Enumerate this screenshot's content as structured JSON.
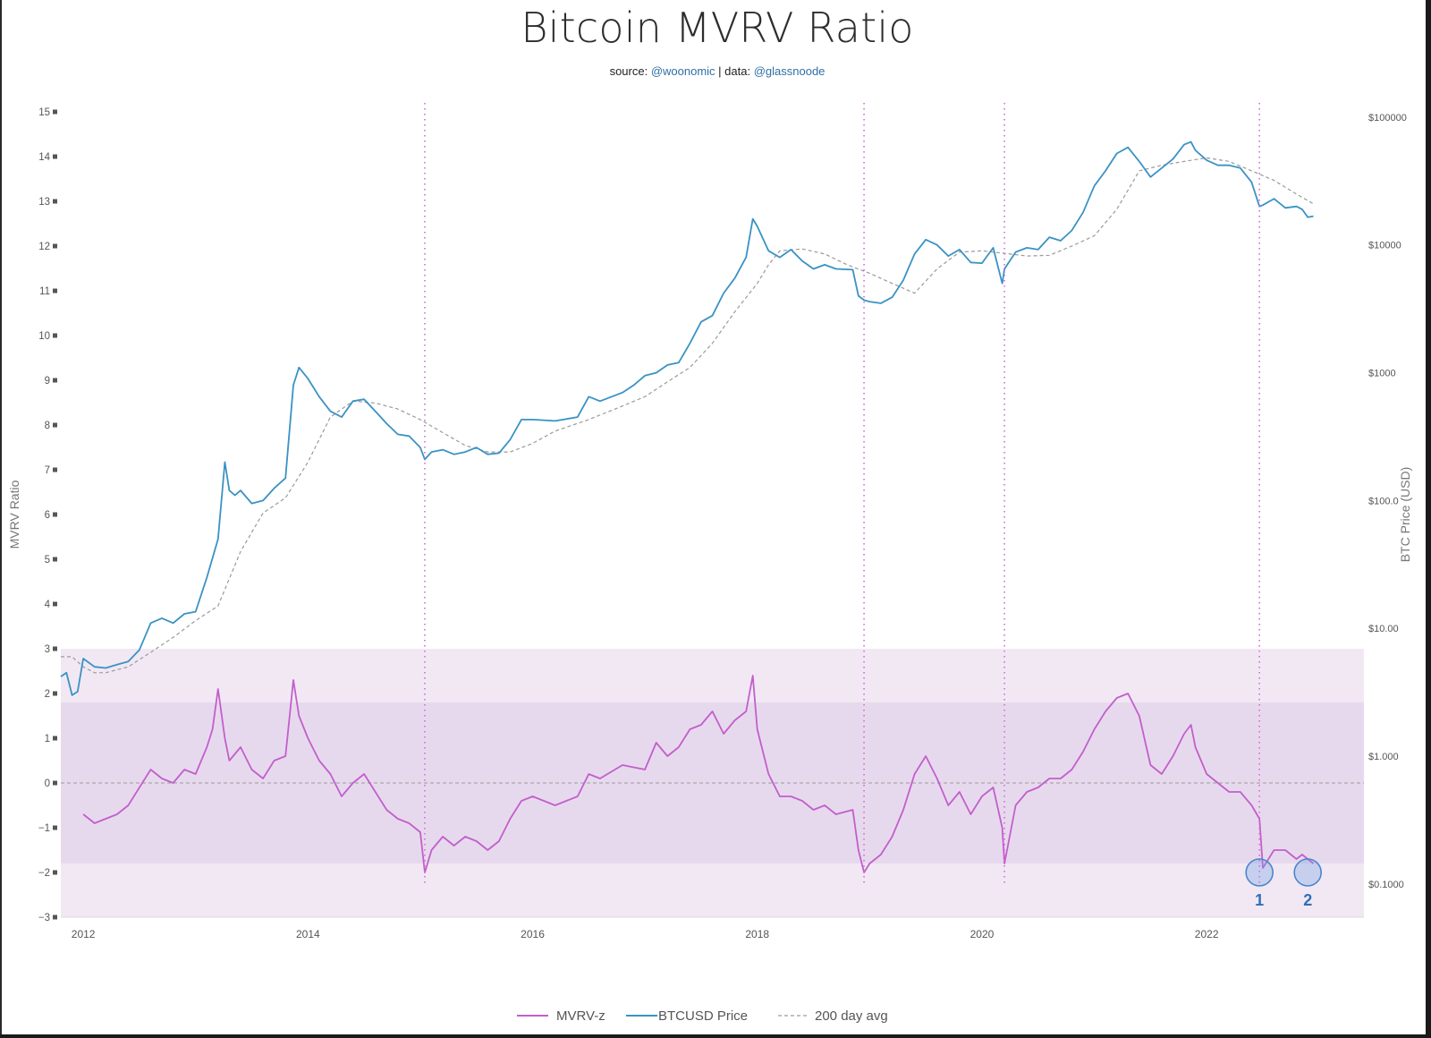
{
  "title": "Bitcoin MVRV Ratio",
  "subtitle": {
    "source_prefix": "source: ",
    "source_handle": "@woonomic",
    "separator": " | data: ",
    "data_handle": "@glassnoode"
  },
  "chart_data": {
    "type": "line",
    "title": "Bitcoin MVRV Ratio",
    "xlabel": "",
    "ylabel": "MVRV Ratio",
    "y2label": "BTC Price (USD)",
    "xlim": [
      2011.8,
      2023.4
    ],
    "ylim": [
      -3,
      15
    ],
    "y2_scale": "log",
    "y2lim": [
      0.055,
      110000
    ],
    "x_ticks": [
      2012,
      2014,
      2016,
      2018,
      2020,
      2022
    ],
    "x_tick_labels": [
      "2012",
      "2014",
      "2016",
      "2018",
      "2020",
      "2022"
    ],
    "y_ticks": [
      -3,
      -2,
      -1,
      0,
      1,
      2,
      3,
      4,
      5,
      6,
      7,
      8,
      9,
      10,
      11,
      12,
      13,
      14,
      15
    ],
    "y_tick_labels": [
      "−3",
      "−2",
      "−1",
      "0",
      "1",
      "2",
      "3",
      "4",
      "5",
      "6",
      "7",
      "8",
      "9",
      "10",
      "11",
      "12",
      "13",
      "14",
      "15"
    ],
    "y2_ticks": [
      0.1,
      1,
      10,
      100,
      1000,
      10000,
      100000
    ],
    "y2_tick_labels": [
      "$0.1000",
      "$1.000",
      "$10.00",
      "$100.0",
      "$1000",
      "$10000",
      "$100000"
    ],
    "bands": [
      {
        "y0": -3,
        "y1": 3,
        "color": "#f1e8f4"
      },
      {
        "y0": -1.8,
        "y1": 1.8,
        "color": "#e7d9ed"
      }
    ],
    "zero_line": 0,
    "vertical_markers": [
      2015.04,
      2018.95,
      2020.2,
      2022.47
    ],
    "series": [
      {
        "name": "BTCUSD Price",
        "axis": "y2",
        "color": "#3a92c4",
        "x": [
          2011.8,
          2011.85,
          2011.9,
          2011.95,
          2012.0,
          2012.1,
          2012.2,
          2012.3,
          2012.4,
          2012.5,
          2012.6,
          2012.7,
          2012.8,
          2012.9,
          2013.0,
          2013.1,
          2013.2,
          2013.26,
          2013.3,
          2013.35,
          2013.4,
          2013.5,
          2013.6,
          2013.7,
          2013.8,
          2013.87,
          2013.92,
          2014.0,
          2014.1,
          2014.2,
          2014.3,
          2014.4,
          2014.5,
          2014.6,
          2014.7,
          2014.8,
          2014.9,
          2015.0,
          2015.04,
          2015.1,
          2015.2,
          2015.3,
          2015.4,
          2015.5,
          2015.6,
          2015.7,
          2015.8,
          2015.9,
          2016.0,
          2016.2,
          2016.4,
          2016.5,
          2016.6,
          2016.8,
          2016.9,
          2017.0,
          2017.1,
          2017.2,
          2017.3,
          2017.4,
          2017.5,
          2017.6,
          2017.7,
          2017.8,
          2017.9,
          2017.96,
          2018.0,
          2018.1,
          2018.2,
          2018.3,
          2018.4,
          2018.5,
          2018.6,
          2018.7,
          2018.85,
          2018.9,
          2018.95,
          2019.0,
          2019.1,
          2019.2,
          2019.3,
          2019.4,
          2019.5,
          2019.6,
          2019.7,
          2019.8,
          2019.9,
          2020.0,
          2020.1,
          2020.18,
          2020.2,
          2020.3,
          2020.4,
          2020.5,
          2020.6,
          2020.7,
          2020.8,
          2020.9,
          2021.0,
          2021.1,
          2021.2,
          2021.3,
          2021.4,
          2021.5,
          2021.6,
          2021.7,
          2021.8,
          2021.86,
          2021.9,
          2022.0,
          2022.1,
          2022.2,
          2022.3,
          2022.4,
          2022.47,
          2022.5,
          2022.6,
          2022.7,
          2022.8,
          2022.85,
          2022.9,
          2022.95
        ],
        "values": [
          4.2,
          4.5,
          3.0,
          3.2,
          5.8,
          5.0,
          4.9,
          5.2,
          5.5,
          6.8,
          11.0,
          12.0,
          11.0,
          13.0,
          13.5,
          25.0,
          50.0,
          200.0,
          120.0,
          110.0,
          120.0,
          95.0,
          100.0,
          125.0,
          150.0,
          800.0,
          1100.0,
          900.0,
          650.0,
          500.0,
          450.0,
          600.0,
          620.0,
          500.0,
          400.0,
          330.0,
          320.0,
          260.0,
          210.0,
          240.0,
          250.0,
          230.0,
          240.0,
          260.0,
          230.0,
          235.0,
          300.0,
          430.0,
          430.0,
          420.0,
          450.0,
          650.0,
          600.0,
          700.0,
          800.0,
          950.0,
          1000.0,
          1150.0,
          1200.0,
          1700.0,
          2500.0,
          2800.0,
          4200.0,
          5500.0,
          8000.0,
          16000.0,
          14000.0,
          9000.0,
          8000.0,
          9200.0,
          7500.0,
          6500.0,
          7000.0,
          6500.0,
          6400.0,
          4000.0,
          3700.0,
          3600.0,
          3500.0,
          3900.0,
          5300.0,
          8500.0,
          11000.0,
          10000.0,
          8200.0,
          9200.0,
          7300.0,
          7200.0,
          9500.0,
          5000.0,
          6500.0,
          8800.0,
          9500.0,
          9200.0,
          11500.0,
          10800.0,
          13000.0,
          18000.0,
          29000.0,
          38000.0,
          52000.0,
          58000.0,
          45000.0,
          34000.0,
          40000.0,
          47000.0,
          61000.0,
          64000.0,
          55000.0,
          46000.0,
          42000.0,
          42000.0,
          40000.0,
          31000.0,
          20000.0,
          20500.0,
          23000.0,
          19500.0,
          20000.0,
          19000.0,
          16500.0,
          16800.0
        ]
      },
      {
        "name": "200 day avg",
        "axis": "y2",
        "color": "#9a9a9a",
        "dash": true,
        "x": [
          2011.8,
          2011.9,
          2012.0,
          2012.1,
          2012.2,
          2012.4,
          2012.6,
          2012.8,
          2013.0,
          2013.2,
          2013.4,
          2013.6,
          2013.8,
          2014.0,
          2014.2,
          2014.4,
          2014.6,
          2014.8,
          2015.0,
          2015.2,
          2015.4,
          2015.6,
          2015.8,
          2016.0,
          2016.2,
          2016.5,
          2016.8,
          2017.0,
          2017.2,
          2017.4,
          2017.6,
          2017.8,
          2018.0,
          2018.1,
          2018.2,
          2018.4,
          2018.6,
          2018.8,
          2019.0,
          2019.2,
          2019.4,
          2019.6,
          2019.8,
          2020.0,
          2020.2,
          2020.4,
          2020.6,
          2020.8,
          2021.0,
          2021.2,
          2021.4,
          2021.6,
          2021.8,
          2022.0,
          2022.2,
          2022.4,
          2022.6,
          2022.8,
          2022.95
        ],
        "values": [
          6.0,
          6.0,
          5.0,
          4.5,
          4.5,
          5.0,
          6.5,
          8.5,
          11.5,
          15.0,
          40.0,
          80.0,
          105.0,
          200.0,
          450.0,
          600.0,
          580.0,
          520.0,
          430.0,
          340.0,
          270.0,
          240.0,
          240.0,
          280.0,
          350.0,
          430.0,
          550.0,
          650.0,
          850.0,
          1100.0,
          1700.0,
          3000.0,
          5000.0,
          7000.0,
          9000.0,
          9300.0,
          8500.0,
          7000.0,
          6000.0,
          5000.0,
          4200.0,
          6500.0,
          8800.0,
          9000.0,
          8600.0,
          8200.0,
          8300.0,
          9800.0,
          11800.0,
          19000.0,
          38000.0,
          42000.0,
          45000.0,
          48000.0,
          45000.0,
          38000.0,
          32000.0,
          25000.0,
          21000.0
        ]
      },
      {
        "name": "MVRV-z",
        "axis": "y",
        "color": "#c25fcc",
        "x": [
          2012.0,
          2012.05,
          2012.1,
          2012.2,
          2012.3,
          2012.4,
          2012.5,
          2012.6,
          2012.7,
          2012.8,
          2012.9,
          2013.0,
          2013.1,
          2013.15,
          2013.2,
          2013.26,
          2013.3,
          2013.4,
          2013.5,
          2013.6,
          2013.7,
          2013.8,
          2013.87,
          2013.92,
          2014.0,
          2014.1,
          2014.2,
          2014.3,
          2014.4,
          2014.5,
          2014.6,
          2014.7,
          2014.8,
          2014.9,
          2015.0,
          2015.04,
          2015.1,
          2015.2,
          2015.3,
          2015.4,
          2015.5,
          2015.6,
          2015.7,
          2015.8,
          2015.9,
          2016.0,
          2016.2,
          2016.4,
          2016.5,
          2016.6,
          2016.8,
          2017.0,
          2017.1,
          2017.2,
          2017.3,
          2017.4,
          2017.5,
          2017.6,
          2017.7,
          2017.8,
          2017.9,
          2017.96,
          2018.0,
          2018.1,
          2018.2,
          2018.3,
          2018.4,
          2018.5,
          2018.6,
          2018.7,
          2018.85,
          2018.9,
          2018.95,
          2019.0,
          2019.1,
          2019.2,
          2019.3,
          2019.4,
          2019.5,
          2019.6,
          2019.7,
          2019.8,
          2019.9,
          2020.0,
          2020.1,
          2020.18,
          2020.2,
          2020.3,
          2020.4,
          2020.5,
          2020.6,
          2020.7,
          2020.8,
          2020.9,
          2021.0,
          2021.1,
          2021.2,
          2021.3,
          2021.4,
          2021.5,
          2021.6,
          2021.7,
          2021.8,
          2021.86,
          2021.9,
          2022.0,
          2022.1,
          2022.2,
          2022.3,
          2022.4,
          2022.47,
          2022.5,
          2022.6,
          2022.7,
          2022.8,
          2022.85,
          2022.9,
          2022.95
        ],
        "values": [
          -0.7,
          -0.8,
          -0.9,
          -0.8,
          -0.7,
          -0.5,
          -0.1,
          0.3,
          0.1,
          0.0,
          0.3,
          0.2,
          0.8,
          1.2,
          2.1,
          1.0,
          0.5,
          0.8,
          0.3,
          0.1,
          0.5,
          0.6,
          2.3,
          1.5,
          1.0,
          0.5,
          0.2,
          -0.3,
          0.0,
          0.2,
          -0.2,
          -0.6,
          -0.8,
          -0.9,
          -1.1,
          -2.0,
          -1.5,
          -1.2,
          -1.4,
          -1.2,
          -1.3,
          -1.5,
          -1.3,
          -0.8,
          -0.4,
          -0.3,
          -0.5,
          -0.3,
          0.2,
          0.1,
          0.4,
          0.3,
          0.9,
          0.6,
          0.8,
          1.2,
          1.3,
          1.6,
          1.1,
          1.4,
          1.6,
          2.4,
          1.2,
          0.2,
          -0.3,
          -0.3,
          -0.4,
          -0.6,
          -0.5,
          -0.7,
          -0.6,
          -1.5,
          -2.0,
          -1.8,
          -1.6,
          -1.2,
          -0.6,
          0.2,
          0.6,
          0.1,
          -0.5,
          -0.2,
          -0.7,
          -0.3,
          -0.1,
          -1.0,
          -1.8,
          -0.5,
          -0.2,
          -0.1,
          0.1,
          0.1,
          0.3,
          0.7,
          1.2,
          1.6,
          1.9,
          2.0,
          1.5,
          0.4,
          0.2,
          0.6,
          1.1,
          1.3,
          0.8,
          0.2,
          0.0,
          -0.2,
          -0.2,
          -0.5,
          -0.8,
          -1.9,
          -1.5,
          -1.5,
          -1.7,
          -1.6,
          -1.7,
          -1.8
        ]
      }
    ],
    "annotations": [
      {
        "label": "1",
        "x": 2022.47,
        "y": -2.0
      },
      {
        "label": "2",
        "x": 2022.9,
        "y": -2.0
      }
    ],
    "legend": [
      "MVRV-z",
      "BTCUSD Price",
      "200 day avg"
    ],
    "legend_position": "bottom-center"
  },
  "colors": {
    "mvrv": "#c25fcc",
    "price": "#3a92c4",
    "avg": "#9a9a9a",
    "marker_circle": "#4b86c9"
  }
}
